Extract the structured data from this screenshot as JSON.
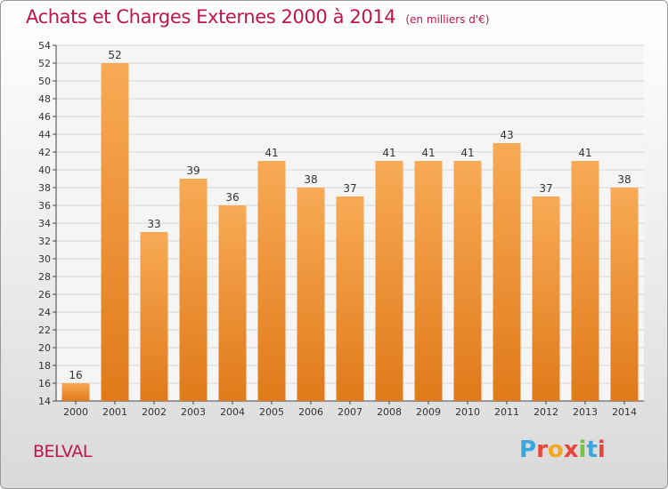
{
  "header": {
    "title": "Achats et Charges Externes 2000 à 2014",
    "subtitle": "(en milliers d'€)"
  },
  "footer": {
    "commune": "BELVAL",
    "logo_text": "Proxiti"
  },
  "colors": {
    "accent": "#c0154a",
    "bar_light": "#f8aa55",
    "bar_dark": "#e07a1a",
    "logo_letters": [
      "#3aa7e0",
      "#e8463c",
      "#f5a623",
      "#e8463c",
      "#7cc242",
      "#3aa7e0",
      "#e8463c"
    ]
  },
  "chart_data": {
    "type": "bar",
    "title": "Achats et Charges Externes 2000 à 2014",
    "subtitle": "(en milliers d'€)",
    "categories": [
      "2000",
      "2001",
      "2002",
      "2003",
      "2004",
      "2005",
      "2006",
      "2007",
      "2008",
      "2009",
      "2010",
      "2011",
      "2012",
      "2013",
      "2014"
    ],
    "values": [
      16,
      52,
      33,
      39,
      36,
      41,
      38,
      37,
      41,
      41,
      41,
      43,
      37,
      41,
      38
    ],
    "ylim": [
      14,
      54
    ],
    "yticks": [
      14,
      16,
      18,
      20,
      22,
      24,
      26,
      28,
      30,
      32,
      34,
      36,
      38,
      40,
      42,
      44,
      46,
      48,
      50,
      52,
      54
    ],
    "grid": true,
    "data_labels": true
  }
}
